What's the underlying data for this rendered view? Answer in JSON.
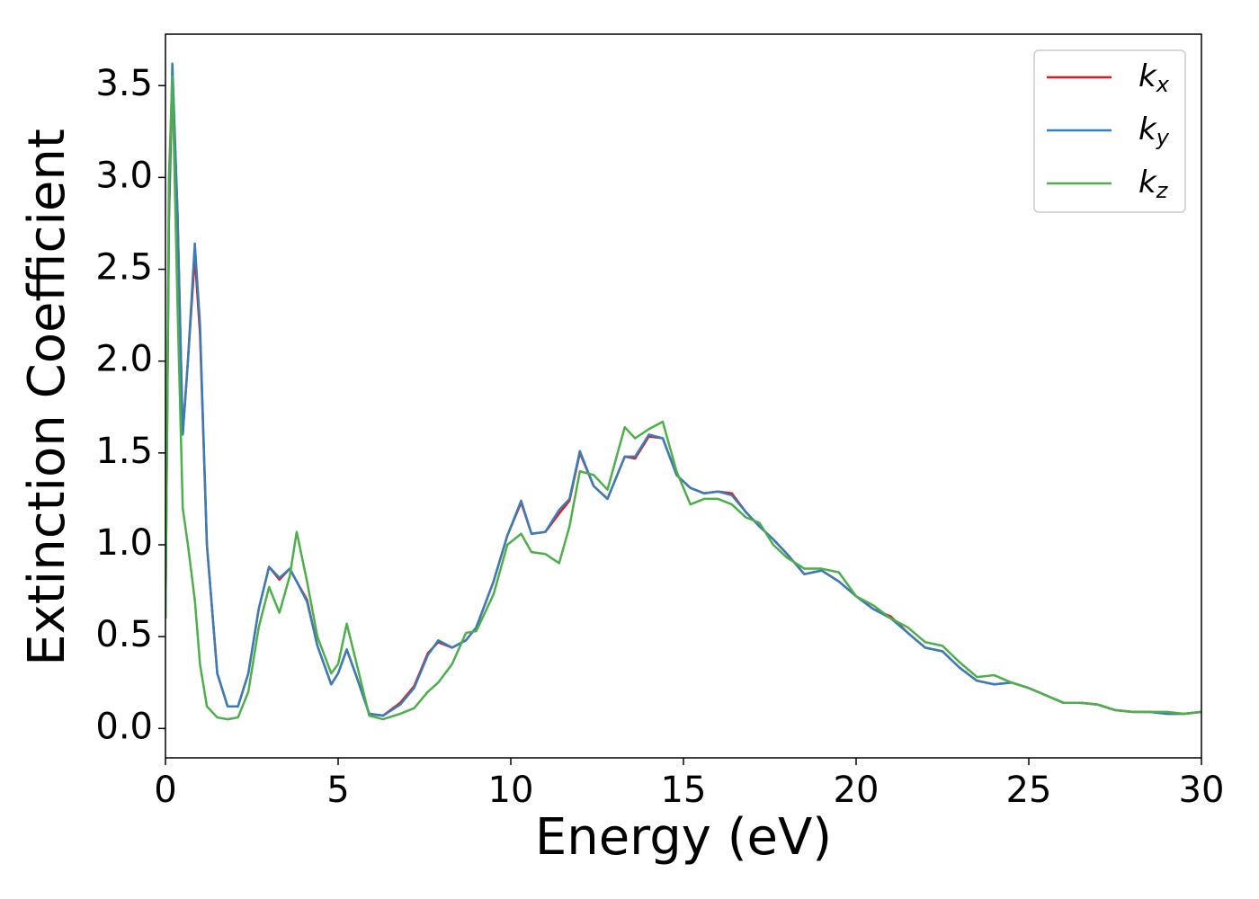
{
  "chart_data": {
    "type": "line",
    "xlabel": "Energy (eV)",
    "ylabel": "Extinction Coefficient",
    "x": [
      0,
      0.1,
      0.2,
      0.35,
      0.5,
      0.65,
      0.85,
      1.0,
      1.2,
      1.5,
      1.8,
      2.1,
      2.4,
      2.7,
      3.0,
      3.3,
      3.6,
      3.8,
      4.1,
      4.4,
      4.8,
      5.0,
      5.25,
      5.5,
      5.9,
      6.3,
      6.8,
      7.2,
      7.6,
      7.9,
      8.3,
      8.7,
      9.0,
      9.5,
      9.9,
      10.3,
      10.6,
      11.0,
      11.4,
      11.7,
      12.0,
      12.4,
      12.8,
      13.3,
      13.6,
      14.0,
      14.4,
      14.8,
      15.2,
      15.6,
      16.0,
      16.4,
      16.8,
      17.2,
      17.6,
      18.0,
      18.5,
      19.0,
      19.5,
      20.0,
      20.5,
      21.0,
      21.5,
      22.0,
      22.5,
      23.0,
      23.5,
      24.0,
      24.5,
      25.0,
      25.5,
      26.0,
      26.5,
      27.0,
      27.5,
      28.0,
      28.5,
      29.0,
      29.5,
      30.0
    ],
    "series": [
      {
        "name": "kx",
        "color": "#e41a1c",
        "values": [
          0.6,
          2.75,
          3.55,
          2.8,
          1.6,
          2.0,
          2.57,
          2.15,
          1.0,
          0.3,
          0.12,
          0.12,
          0.3,
          0.65,
          0.88,
          0.81,
          0.87,
          0.8,
          0.7,
          0.45,
          0.24,
          0.3,
          0.43,
          0.3,
          0.08,
          0.07,
          0.14,
          0.23,
          0.41,
          0.47,
          0.44,
          0.48,
          0.55,
          0.8,
          1.05,
          1.23,
          1.06,
          1.07,
          1.17,
          1.24,
          1.5,
          1.32,
          1.25,
          1.48,
          1.47,
          1.59,
          1.58,
          1.38,
          1.31,
          1.28,
          1.29,
          1.28,
          1.18,
          1.1,
          1.03,
          0.95,
          0.84,
          0.86,
          0.8,
          0.72,
          0.65,
          0.61,
          0.52,
          0.44,
          0.42,
          0.33,
          0.26,
          0.24,
          0.25,
          0.22,
          0.18,
          0.14,
          0.14,
          0.13,
          0.1,
          0.09,
          0.09,
          0.08,
          0.08,
          0.09
        ]
      },
      {
        "name": "ky",
        "color": "#377eb8",
        "values": [
          0.6,
          2.8,
          3.62,
          2.8,
          1.6,
          2.0,
          2.64,
          2.2,
          1.0,
          0.3,
          0.12,
          0.12,
          0.3,
          0.65,
          0.88,
          0.82,
          0.87,
          0.8,
          0.69,
          0.45,
          0.24,
          0.3,
          0.43,
          0.3,
          0.08,
          0.07,
          0.13,
          0.22,
          0.4,
          0.48,
          0.44,
          0.48,
          0.55,
          0.8,
          1.05,
          1.24,
          1.06,
          1.07,
          1.19,
          1.25,
          1.51,
          1.32,
          1.25,
          1.48,
          1.48,
          1.6,
          1.58,
          1.38,
          1.31,
          1.28,
          1.29,
          1.27,
          1.18,
          1.1,
          1.03,
          0.95,
          0.84,
          0.86,
          0.8,
          0.72,
          0.65,
          0.6,
          0.52,
          0.44,
          0.42,
          0.33,
          0.26,
          0.24,
          0.25,
          0.22,
          0.18,
          0.14,
          0.14,
          0.13,
          0.1,
          0.09,
          0.09,
          0.08,
          0.08,
          0.09
        ]
      },
      {
        "name": "kz",
        "color": "#4daf4a",
        "values": [
          0.6,
          3.0,
          3.55,
          2.3,
          1.2,
          1.0,
          0.7,
          0.35,
          0.12,
          0.06,
          0.05,
          0.06,
          0.2,
          0.55,
          0.77,
          0.63,
          0.83,
          1.07,
          0.8,
          0.5,
          0.3,
          0.35,
          0.57,
          0.38,
          0.07,
          0.05,
          0.08,
          0.11,
          0.2,
          0.25,
          0.35,
          0.52,
          0.53,
          0.73,
          1.0,
          1.06,
          0.96,
          0.95,
          0.9,
          1.1,
          1.4,
          1.38,
          1.3,
          1.64,
          1.58,
          1.63,
          1.67,
          1.4,
          1.22,
          1.25,
          1.25,
          1.22,
          1.15,
          1.12,
          1.0,
          0.93,
          0.87,
          0.87,
          0.85,
          0.72,
          0.67,
          0.6,
          0.55,
          0.47,
          0.45,
          0.36,
          0.28,
          0.29,
          0.25,
          0.22,
          0.18,
          0.14,
          0.14,
          0.13,
          0.1,
          0.09,
          0.09,
          0.09,
          0.08,
          0.09
        ]
      }
    ],
    "xlim": [
      0,
      30
    ],
    "xticks": [
      0,
      5,
      10,
      15,
      20,
      25,
      30
    ],
    "ylim": [
      -0.16,
      3.78
    ],
    "yticks": [
      {
        "value": 0,
        "label": "0.0"
      },
      0.5,
      {
        "value": 1,
        "label": "1.0"
      },
      1.5,
      {
        "value": 2,
        "label": "2.0"
      },
      2.5,
      {
        "value": 3,
        "label": "3.0"
      },
      3.5
    ],
    "legend": "upper right",
    "grid": false
  }
}
